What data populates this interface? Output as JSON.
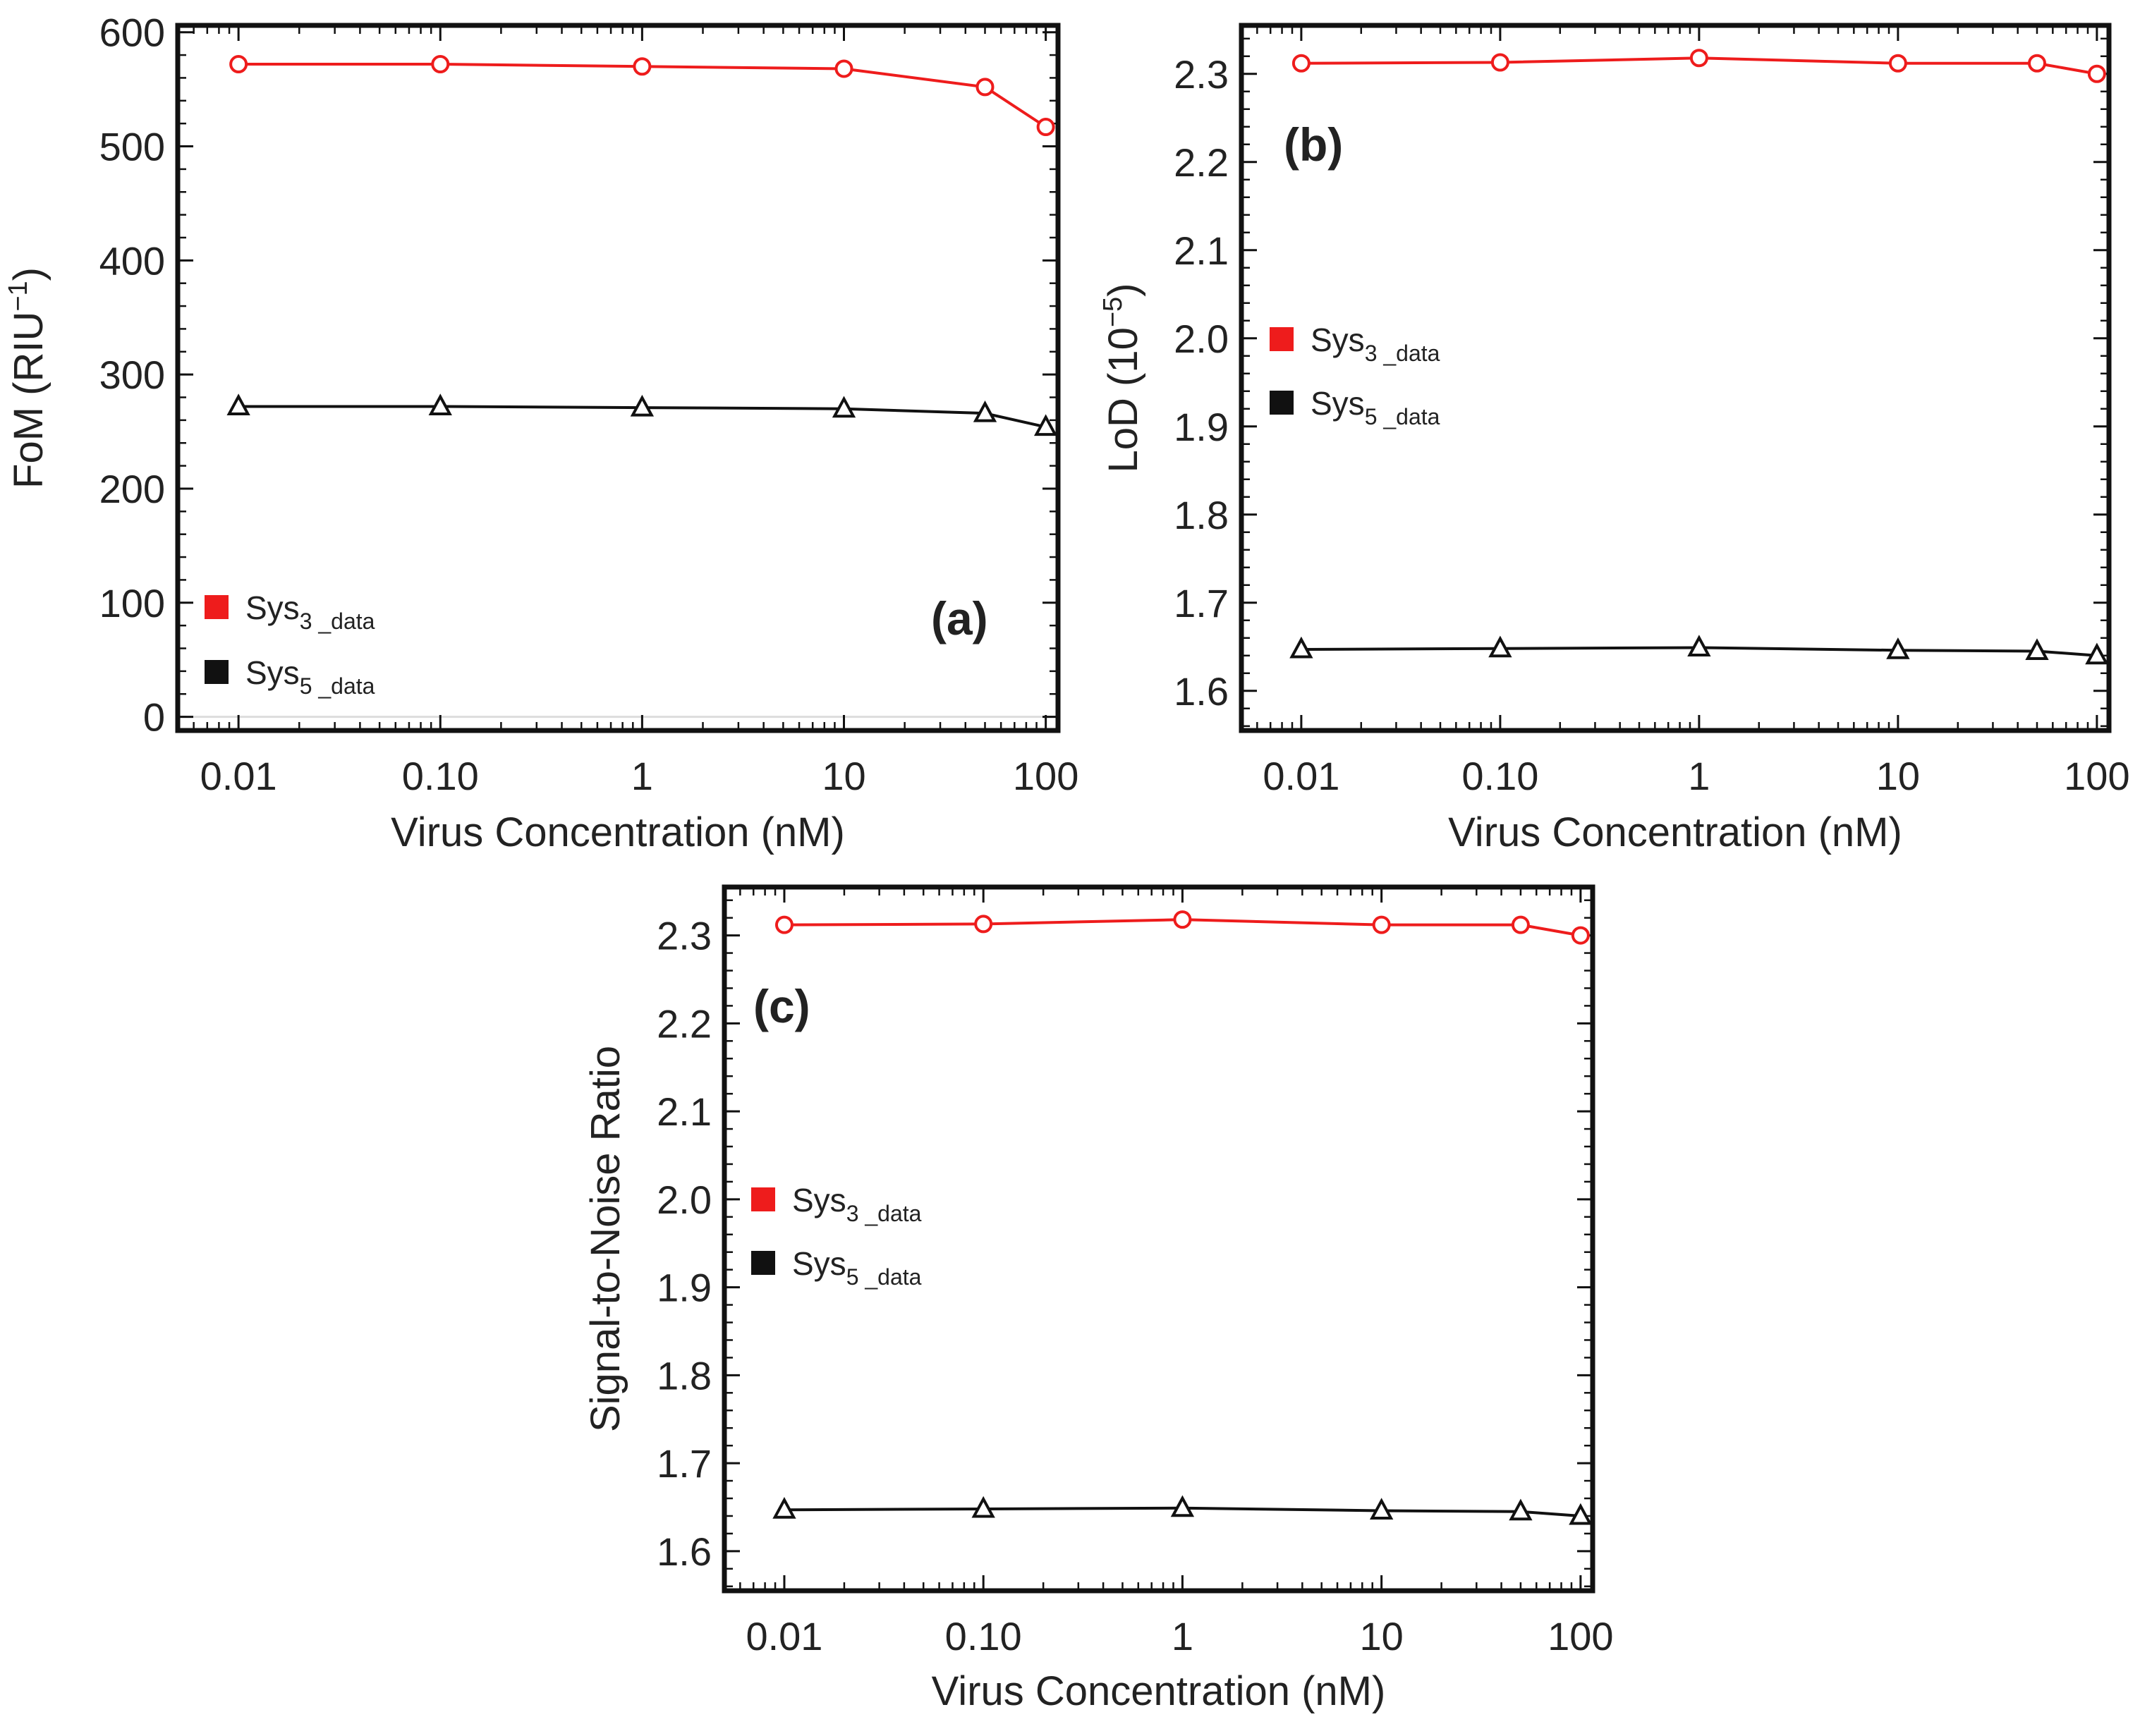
{
  "chart_data": [
    {
      "type": "line",
      "panel_label": "(a)",
      "xlabel": "Virus Concentration (nM)",
      "ylabel": {
        "base": "FoM (RIU",
        "sup": "−1",
        "end": ")"
      },
      "x_scale": "log",
      "x": [
        0.01,
        0.1,
        1,
        10,
        50,
        100
      ],
      "xlim": [
        0.005,
        115
      ],
      "xticks": [
        0.01,
        0.1,
        1,
        10,
        100
      ],
      "xtick_labels": [
        "0.01",
        "0.10",
        "1",
        "10",
        "100"
      ],
      "ylim": [
        -12,
        606
      ],
      "yticks": [
        0,
        100,
        200,
        300,
        400,
        500,
        600
      ],
      "ytick_labels": [
        "0",
        "100",
        "200",
        "300",
        "400",
        "500",
        "600"
      ],
      "legend": {
        "position": "bottom-left"
      },
      "series": [
        {
          "name": "Sys3_data",
          "label_main": "Sys",
          "label_sub": "3 _data",
          "color": "#ee1c1c",
          "marker": "circle",
          "values": [
            572,
            572,
            570,
            568,
            552,
            517
          ]
        },
        {
          "name": "Sys5_data",
          "label_main": "Sys",
          "label_sub": "5 _data",
          "color": "#111111",
          "marker": "triangle",
          "values": [
            272,
            272,
            271,
            270,
            266,
            254
          ]
        }
      ]
    },
    {
      "type": "line",
      "panel_label": "(b)",
      "xlabel": "Virus Concentration (nM)",
      "ylabel": {
        "base": "LoD (10",
        "sup": "−5",
        "end": ")"
      },
      "x_scale": "log",
      "x": [
        0.01,
        0.1,
        1,
        10,
        50,
        100
      ],
      "xlim": [
        0.005,
        115
      ],
      "xticks": [
        0.01,
        0.1,
        1,
        10,
        100
      ],
      "xtick_labels": [
        "0.01",
        "0.10",
        "1",
        "10",
        "100"
      ],
      "ylim": [
        1.555,
        2.355
      ],
      "yticks": [
        1.6,
        1.7,
        1.8,
        1.9,
        2.0,
        2.1,
        2.2,
        2.3
      ],
      "ytick_labels": [
        "1.6",
        "1.7",
        "1.8",
        "1.9",
        "2.0",
        "2.1",
        "2.2",
        "2.3"
      ],
      "legend": {
        "position": "middle-left"
      },
      "series": [
        {
          "name": "Sys3_data",
          "label_main": "Sys",
          "label_sub": "3 _data",
          "color": "#ee1c1c",
          "marker": "circle",
          "values": [
            2.312,
            2.313,
            2.318,
            2.312,
            2.312,
            2.3
          ]
        },
        {
          "name": "Sys5_data",
          "label_main": "Sys",
          "label_sub": "5 _data",
          "color": "#111111",
          "marker": "triangle",
          "values": [
            1.647,
            1.648,
            1.649,
            1.646,
            1.645,
            1.64
          ]
        }
      ]
    },
    {
      "type": "line",
      "panel_label": "(c)",
      "xlabel": "Virus Concentration (nM)",
      "ylabel": {
        "base": "Signal-to-Noise Ratio",
        "sup": "",
        "end": ""
      },
      "x_scale": "log",
      "x": [
        0.01,
        0.1,
        1,
        10,
        50,
        100
      ],
      "xlim": [
        0.005,
        115
      ],
      "xticks": [
        0.01,
        0.1,
        1,
        10,
        100
      ],
      "xtick_labels": [
        "0.01",
        "0.10",
        "1",
        "10",
        "100"
      ],
      "ylim": [
        1.555,
        2.355
      ],
      "yticks": [
        1.6,
        1.7,
        1.8,
        1.9,
        2.0,
        2.1,
        2.2,
        2.3
      ],
      "ytick_labels": [
        "1.6",
        "1.7",
        "1.8",
        "1.9",
        "2.0",
        "2.1",
        "2.2",
        "2.3"
      ],
      "legend": {
        "position": "middle-left"
      },
      "series": [
        {
          "name": "Sys3_data",
          "label_main": "Sys",
          "label_sub": "3 _data",
          "color": "#ee1c1c",
          "marker": "circle",
          "values": [
            2.312,
            2.313,
            2.318,
            2.312,
            2.312,
            2.3
          ]
        },
        {
          "name": "Sys5_data",
          "label_main": "Sys",
          "label_sub": "5 _data",
          "color": "#111111",
          "marker": "triangle",
          "values": [
            1.647,
            1.648,
            1.649,
            1.646,
            1.645,
            1.64
          ]
        }
      ]
    }
  ]
}
